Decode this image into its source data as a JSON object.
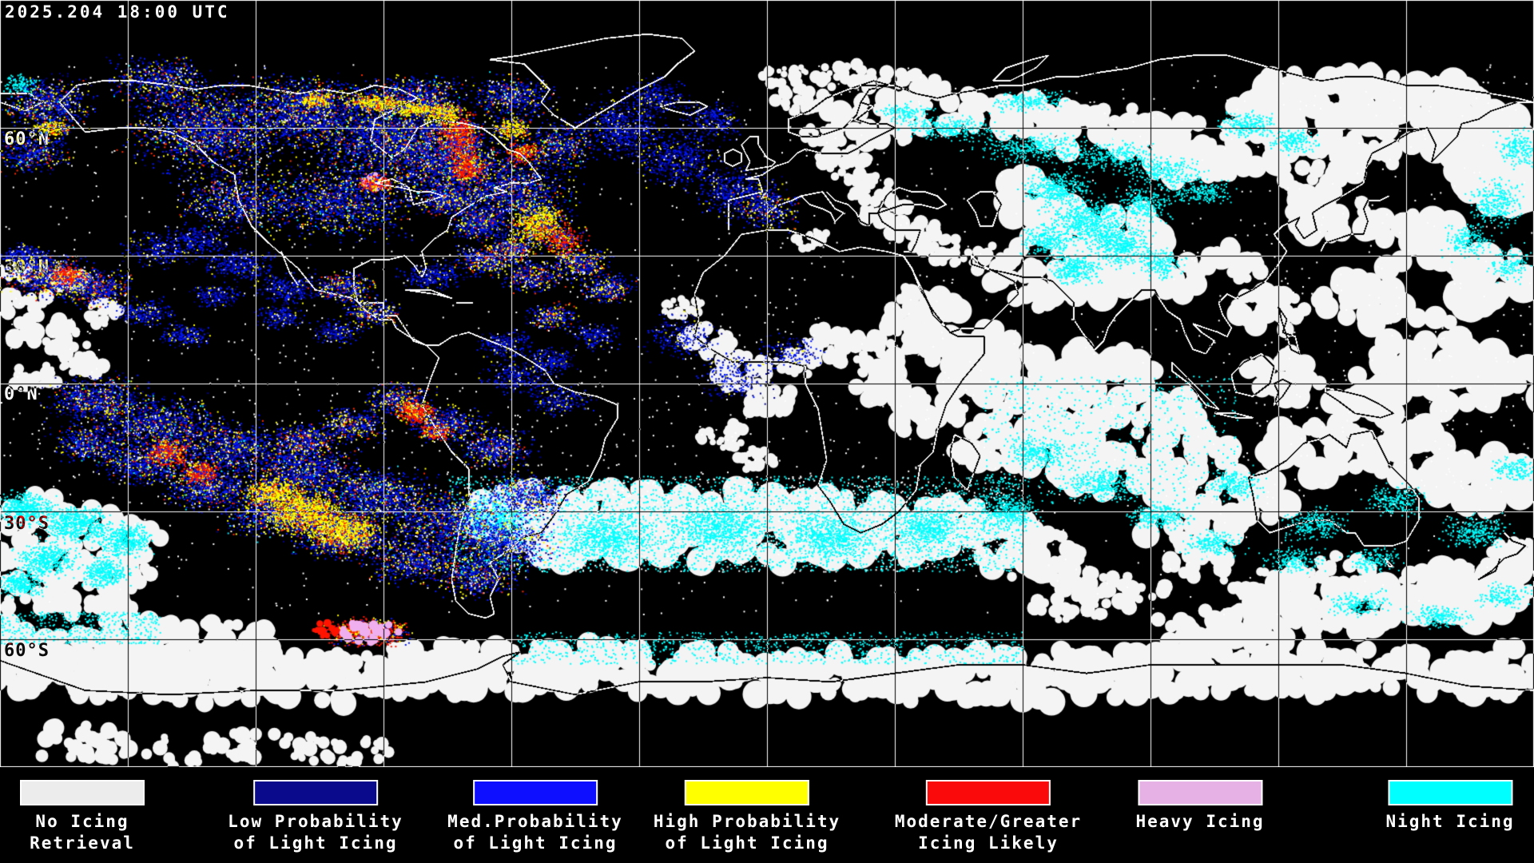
{
  "header": {
    "timestamp": "2025.204 18:00 UTC"
  },
  "map": {
    "latitude_labels": [
      {
        "text": "60°N"
      },
      {
        "text": "30°N"
      },
      {
        "text": "0°N"
      },
      {
        "text": "30°S"
      },
      {
        "text": "60°S"
      }
    ]
  },
  "legend": {
    "items": [
      {
        "line1": "No Icing",
        "line2": "Retrieval",
        "color": "#ececec"
      },
      {
        "line1": "Low Probability",
        "line2": "of Light Icing",
        "color": "#0a0a8c"
      },
      {
        "line1": "Med.Probability",
        "line2": "of Light Icing",
        "color": "#0f0fff"
      },
      {
        "line1": "High Probability",
        "line2": "of Light Icing",
        "color": "#ffff00"
      },
      {
        "line1": "Moderate/Greater",
        "line2": "Icing Likely",
        "color": "#fa0a0a"
      },
      {
        "line1": "Heavy Icing",
        "line2": "",
        "color": "#e6b2e6"
      },
      {
        "line1": "Night Icing",
        "line2": "",
        "color": "#00ffff"
      }
    ]
  },
  "colors": {
    "background": "#000000",
    "text": "#ffffff",
    "grid": "#ffffff",
    "coastline": "#ffffff",
    "no_icing": "#f4f4f4",
    "low_prob": "#000088",
    "med_prob": "#0018ff",
    "high_prob": "#ffff00",
    "moderate": "#ff1400",
    "heavy": "#f0b0f0",
    "night": "#00ffff"
  }
}
